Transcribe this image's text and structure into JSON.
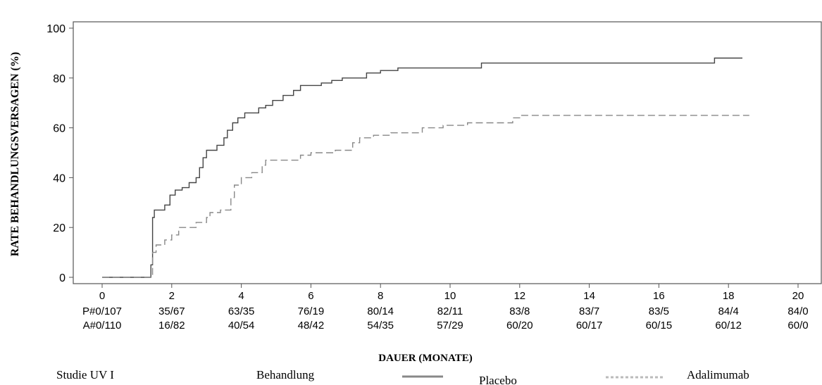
{
  "chart_data": {
    "type": "line",
    "title": "",
    "xlabel": "DAUER (MONATE)",
    "ylabel": "RATE BEHANDLUNGSVERSAGEN (%)",
    "xlim": [
      0,
      20
    ],
    "ylim": [
      0,
      100
    ],
    "x_ticks": [
      0,
      2,
      4,
      6,
      8,
      10,
      12,
      14,
      16,
      18,
      20
    ],
    "y_ticks": [
      0,
      20,
      40,
      60,
      80,
      100
    ],
    "grid": false,
    "series": [
      {
        "name": "Placebo",
        "style": "solid",
        "color": "#444444",
        "points": [
          [
            0,
            0
          ],
          [
            1.35,
            0
          ],
          [
            1.4,
            5
          ],
          [
            1.45,
            24
          ],
          [
            1.5,
            27
          ],
          [
            1.8,
            29
          ],
          [
            1.95,
            33
          ],
          [
            2.1,
            35
          ],
          [
            2.3,
            36
          ],
          [
            2.5,
            38
          ],
          [
            2.7,
            40
          ],
          [
            2.8,
            44
          ],
          [
            2.9,
            48
          ],
          [
            3.0,
            51
          ],
          [
            3.3,
            53
          ],
          [
            3.5,
            56
          ],
          [
            3.6,
            59
          ],
          [
            3.75,
            62
          ],
          [
            3.9,
            64
          ],
          [
            4.1,
            66
          ],
          [
            4.5,
            68
          ],
          [
            4.7,
            69
          ],
          [
            4.9,
            71
          ],
          [
            5.2,
            73
          ],
          [
            5.5,
            75
          ],
          [
            5.7,
            77
          ],
          [
            6.3,
            78
          ],
          [
            6.6,
            79
          ],
          [
            6.9,
            80
          ],
          [
            7.6,
            82
          ],
          [
            8.0,
            83
          ],
          [
            8.5,
            84
          ],
          [
            10.9,
            86
          ],
          [
            17.6,
            88
          ],
          [
            18.4,
            88
          ]
        ]
      },
      {
        "name": "Adalimumab",
        "style": "dashed",
        "color": "#888888",
        "points": [
          [
            0,
            0
          ],
          [
            1.35,
            0
          ],
          [
            1.45,
            10
          ],
          [
            1.55,
            13
          ],
          [
            1.8,
            15
          ],
          [
            2.0,
            17
          ],
          [
            2.2,
            20
          ],
          [
            2.7,
            22
          ],
          [
            3.0,
            24
          ],
          [
            3.1,
            26
          ],
          [
            3.4,
            27
          ],
          [
            3.7,
            32
          ],
          [
            3.8,
            37
          ],
          [
            4.0,
            40
          ],
          [
            4.3,
            42
          ],
          [
            4.6,
            45
          ],
          [
            4.7,
            47
          ],
          [
            5.7,
            49
          ],
          [
            6.0,
            50
          ],
          [
            6.7,
            51
          ],
          [
            7.2,
            54
          ],
          [
            7.4,
            56
          ],
          [
            7.8,
            57
          ],
          [
            8.3,
            58
          ],
          [
            9.2,
            60
          ],
          [
            9.8,
            61
          ],
          [
            10.5,
            62
          ],
          [
            11.8,
            64
          ],
          [
            12.0,
            65
          ],
          [
            18.6,
            65
          ]
        ]
      }
    ],
    "risk_table": {
      "rows": [
        {
          "label": "P#0/107",
          "values": [
            "P#0/107",
            "35/67",
            "63/35",
            "76/19",
            "80/14",
            "82/11",
            "83/8",
            "83/7",
            "83/5",
            "84/4",
            "84/0"
          ]
        },
        {
          "label": "A#0/110",
          "values": [
            "A#0/110",
            "16/82",
            "40/54",
            "48/42",
            "54/35",
            "57/29",
            "60/20",
            "60/17",
            "60/15",
            "60/12",
            "60/0"
          ]
        }
      ]
    },
    "legend": {
      "study": "Studie UV I",
      "treatment_label": "Behandlung",
      "placebo": "Placebo",
      "adalimumab": "Adalimumab"
    }
  }
}
